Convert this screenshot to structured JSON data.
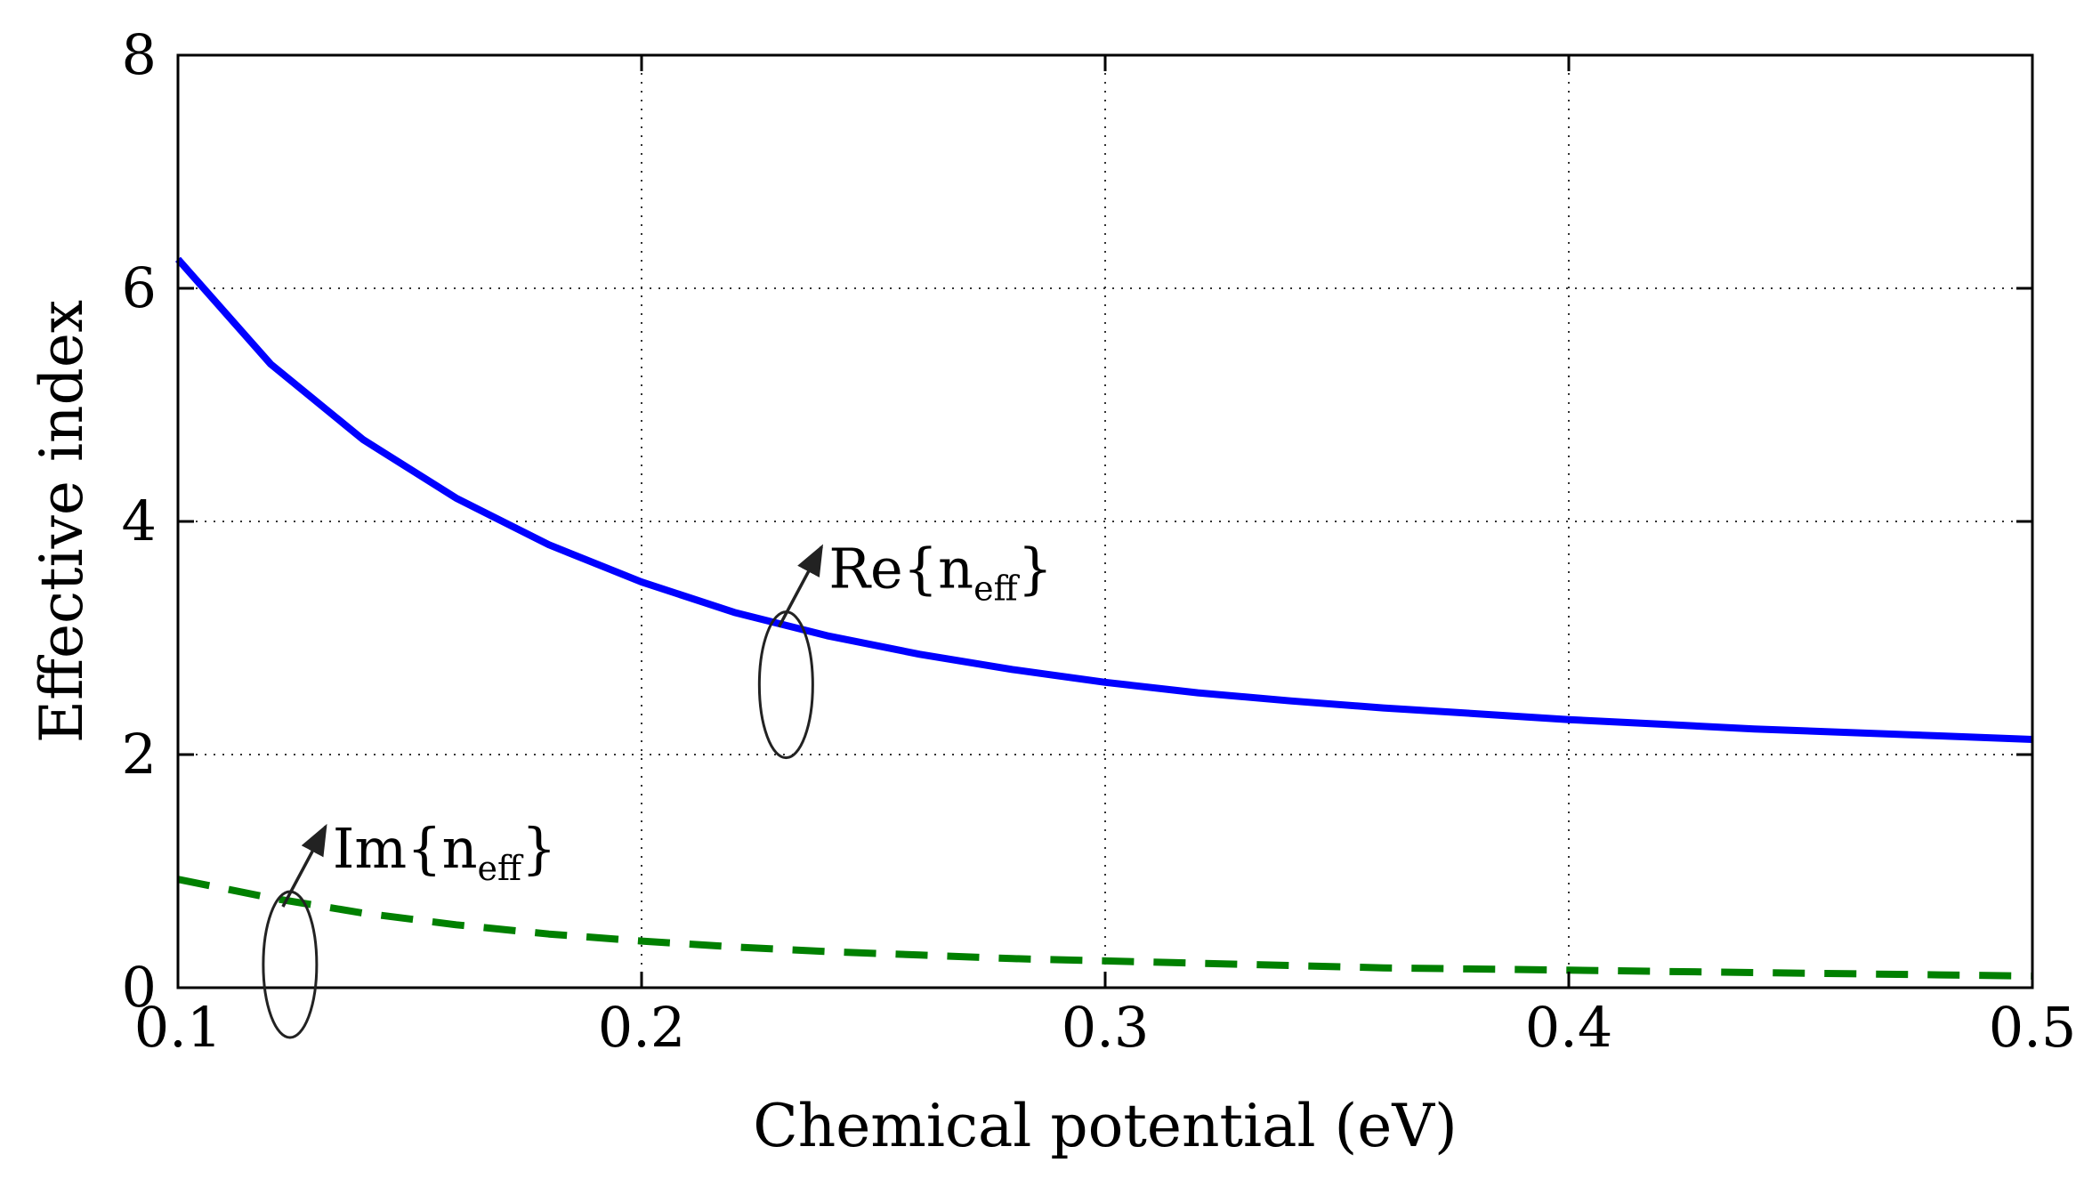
{
  "chart_data": {
    "type": "line",
    "title": "",
    "xlabel": "Chemical potential (eV)",
    "ylabel": "Effective index",
    "xlim": [
      0.1,
      0.5
    ],
    "ylim": [
      0,
      8
    ],
    "xticks": [
      0.1,
      0.2,
      0.3,
      0.4,
      0.5
    ],
    "xtick_labels": [
      "0.1",
      "0.2",
      "0.3",
      "0.4",
      "0.5"
    ],
    "yticks": [
      0,
      2,
      4,
      6,
      8
    ],
    "ytick_labels": [
      "0",
      "2",
      "4",
      "6",
      "8"
    ],
    "grid": true,
    "legend": "none",
    "x": [
      0.1,
      0.12,
      0.14,
      0.16,
      0.18,
      0.2,
      0.22,
      0.24,
      0.26,
      0.28,
      0.3,
      0.32,
      0.34,
      0.36,
      0.38,
      0.4,
      0.42,
      0.44,
      0.46,
      0.48,
      0.5
    ],
    "series": [
      {
        "name": "Re{neff}",
        "color": "#0000ff",
        "style": "solid",
        "values": [
          6.25,
          5.35,
          4.7,
          4.2,
          3.8,
          3.48,
          3.22,
          3.02,
          2.86,
          2.73,
          2.62,
          2.53,
          2.46,
          2.4,
          2.35,
          2.3,
          2.26,
          2.22,
          2.19,
          2.16,
          2.13
        ]
      },
      {
        "name": "Im{neff}",
        "color": "#008000",
        "style": "dashed",
        "values": [
          0.93,
          0.77,
          0.64,
          0.54,
          0.46,
          0.4,
          0.35,
          0.31,
          0.28,
          0.25,
          0.23,
          0.21,
          0.19,
          0.17,
          0.16,
          0.15,
          0.14,
          0.13,
          0.12,
          0.11,
          0.1
        ]
      }
    ],
    "annotations": [
      {
        "main": "Re{n",
        "sub": "eff",
        "close": "}",
        "x": 0.235,
        "y": 3.4,
        "points_to": "Re{neff}"
      },
      {
        "main": "Im{n",
        "sub": "eff",
        "close": "}",
        "x": 0.128,
        "y": 1.0,
        "points_to": "Im{neff}"
      }
    ]
  }
}
